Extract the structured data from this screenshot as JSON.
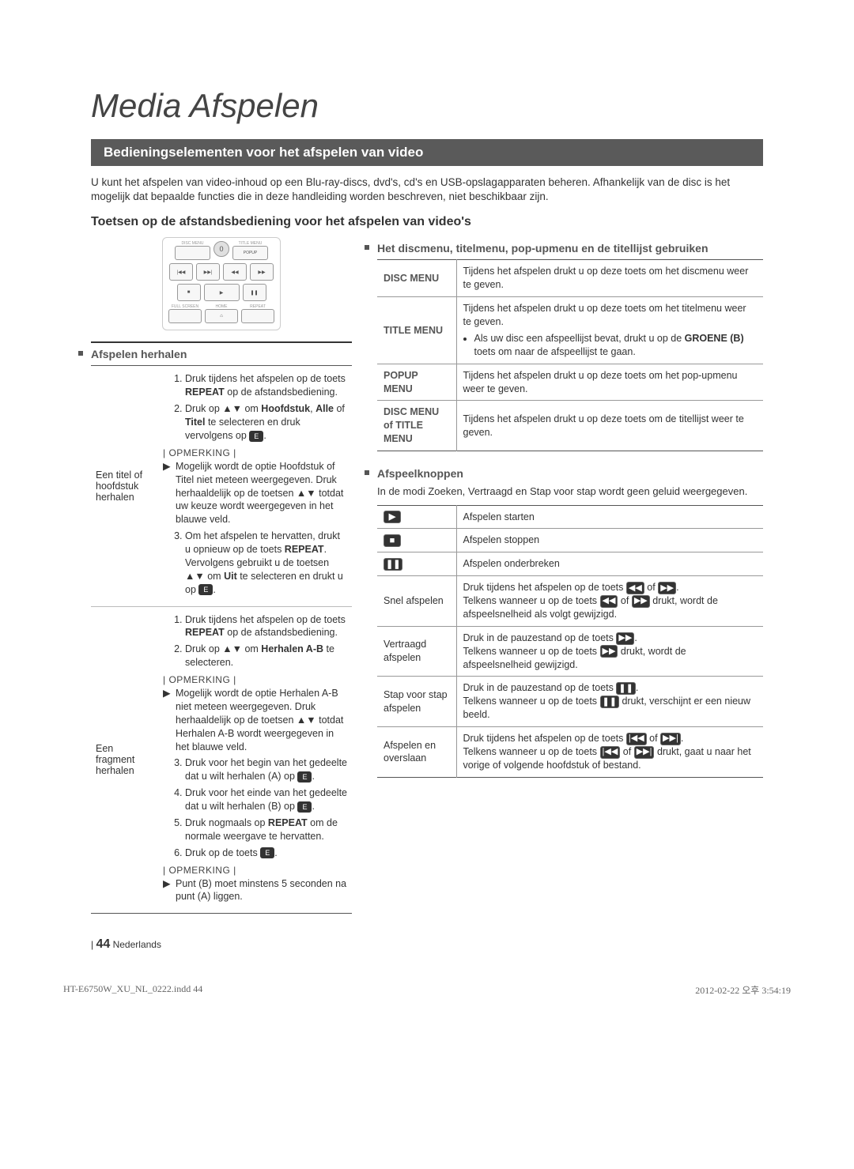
{
  "chapter_title": "Media Afspelen",
  "section_bar": "Bedieningselementen voor het afspelen van video",
  "intro": "U kunt het afspelen van video-inhoud op een Blu-ray-discs, dvd's, cd's en USB-opslagapparaten beheren. Afhankelijk van de disc is het mogelijk dat bepaalde functies die in deze handleiding worden beschreven, niet beschikbaar zijn.",
  "subsection": "Toetsen op de afstandsbediening voor het afspelen van video's",
  "remote": {
    "row1": [
      "DISC MENU",
      "TITLE MENU"
    ],
    "num": "0",
    "popup": "POPUP",
    "row3": [
      "FULL SCREEN",
      "HOME",
      "REPEAT"
    ]
  },
  "left": {
    "heading1": "Afspelen herhalen",
    "row1_label": "Een titel of hoofdstuk herhalen",
    "row1_steps_html": "<ol class='steps'><li>Druk tijdens het afspelen op de toets <b>REPEAT</b> op de afstandsbediening.</li><li>Druk op ▲▼ om <b>Hoofdstuk</b>, <b>Alle</b> of <b>Titel</b> te selecteren en druk vervolgens op <span class='enter-icon'>E</span>.</li></ol><div class='note-label'>| OPMERKING |</div><div class='note-item'><span class='tri'>▶</span><span>Mogelijk wordt de optie Hoofdstuk of Titel niet meteen weergegeven. Druk herhaaldelijk op de toetsen ▲▼ totdat uw keuze wordt weergegeven in het blauwe veld.</span></div><ol class='steps' start='3'><li>Om het afspelen te hervatten, drukt u opnieuw op de toets <b>REPEAT</b>. Vervolgens gebruikt u de toetsen ▲▼ om <b>Uit</b> te selecteren en drukt u op <span class='enter-icon'>E</span>.</li></ol>",
    "row2_label": "Een fragment herhalen",
    "row2_steps_html": "<ol class='steps'><li>Druk tijdens het afspelen op de toets <b>REPEAT</b> op de afstandsbediening.</li><li>Druk op ▲▼ om <b>Herhalen A-B</b> te selecteren.</li></ol><div class='note-label'>| OPMERKING |</div><div class='note-item'><span class='tri'>▶</span><span>Mogelijk wordt de optie Herhalen A-B niet meteen weergegeven. Druk herhaaldelijk op de toetsen ▲▼ totdat Herhalen A-B wordt weergegeven in het blauwe veld.</span></div><ol class='steps' start='3'><li>Druk voor het begin van het gedeelte dat u wilt herhalen (A) op <span class='enter-icon'>E</span>.</li><li>Druk voor het einde van het gedeelte dat u wilt herhalen (B) op <span class='enter-icon'>E</span>.</li><li>Druk nogmaals op <b>REPEAT</b> om de normale weergave te hervatten.</li><li>Druk op de toets <span class='enter-icon'>E</span>.</li></ol><div class='note-label'>| OPMERKING |</div><div class='note-item'><span class='tri'>▶</span><span>Punt (B) moet minstens 5 seconden na punt (A) liggen.</span></div>"
  },
  "right": {
    "heading1": "Het discmenu, titelmenu, pop-upmenu en de titellijst gebruiken",
    "menu_rows": [
      {
        "k": "DISC MENU",
        "v": "Tijdens het afspelen drukt u op deze toets om het discmenu weer te geven."
      },
      {
        "k": "TITLE MENU",
        "v_html": "Tijdens het afspelen drukt u op deze toets om het titelmenu weer te geven.<ul style='margin:4px 0 0 0;padding-left:14px;'><li>Als uw disc een afspeellijst bevat, drukt u op de <b>GROENE (B)</b> toets om naar de afspeellijst te gaan.</li></ul>"
      },
      {
        "k": "POPUP MENU",
        "v": "Tijdens het afspelen drukt u op deze toets om het pop-upmenu weer te geven."
      },
      {
        "k": "DISC MENU of TITLE MENU",
        "v": "Tijdens het afspelen drukt u op deze toets om de titellijst weer te geven."
      }
    ],
    "heading2": "Afspeelknoppen",
    "desc2": "In de modi Zoeken, Vertraagd en Stap voor stap wordt geen geluid weergegeven.",
    "play_rows": [
      {
        "icon": "play",
        "v": "Afspelen starten"
      },
      {
        "icon": "stop",
        "v": "Afspelen stoppen"
      },
      {
        "icon": "pause",
        "v": "Afspelen onderbreken"
      },
      {
        "k": "Snel afspelen",
        "v_html": "Druk tijdens het afspelen op de toets <span class='btn-icon'>◀◀</span> of <span class='btn-icon'>▶▶</span>.<br>Telkens wanneer u op de toets <span class='btn-icon'>◀◀</span> of <span class='btn-icon'>▶▶</span> drukt, wordt de afspeelsnelheid als volgt gewijzigd."
      },
      {
        "k": "Vertraagd afspelen",
        "v_html": "Druk in de pauzestand op de toets <span class='btn-icon'>▶▶</span>.<br>Telkens wanneer u op de toets <span class='btn-icon'>▶▶</span> drukt, wordt de afspeelsnelheid gewijzigd."
      },
      {
        "k": "Stap voor stap afspelen",
        "v_html": "Druk in de pauzestand op de toets <span class='btn-icon'>❚❚</span>.<br>Telkens wanneer u op de toets <span class='btn-icon'>❚❚</span> drukt, verschijnt er een nieuw beeld."
      },
      {
        "k": "Afspelen en overslaan",
        "v_html": "Druk tijdens het afspelen op de toets <span class='btn-icon'>|◀◀</span> of <span class='btn-icon'>▶▶|</span>.<br>Telkens wanneer u op de toets <span class='btn-icon'>|◀◀</span> of <span class='btn-icon'>▶▶|</span> drukt, gaat u naar het vorige of volgende hoofdstuk of bestand."
      }
    ]
  },
  "footer": {
    "page_num": "44",
    "lang": "Nederlands",
    "file": "HT-E6750W_XU_NL_0222.indd   44",
    "date": "2012-02-22   오후 3:54:19"
  }
}
